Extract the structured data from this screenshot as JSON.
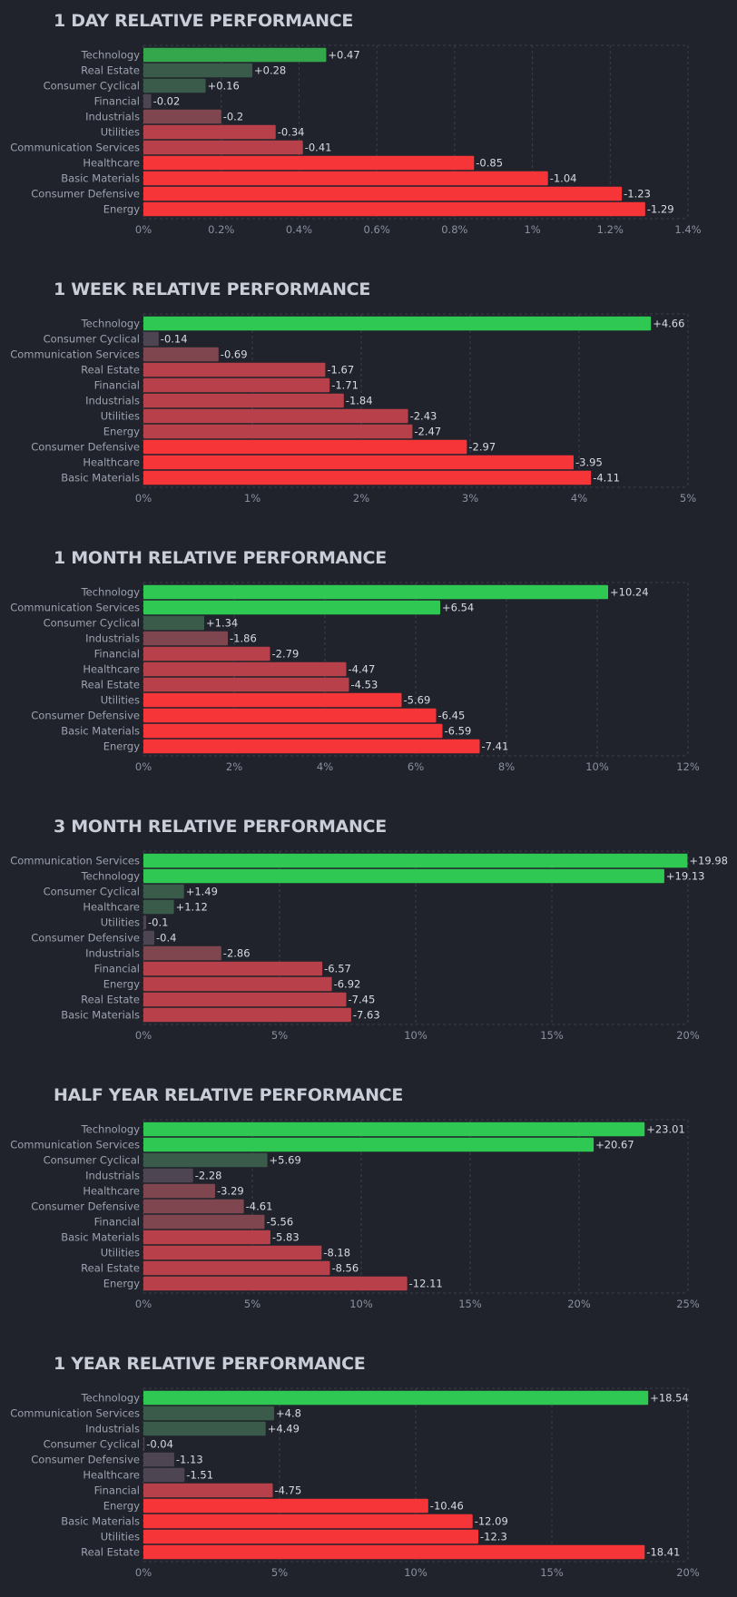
{
  "colors": {
    "background": "#20232b",
    "grid": "#3a3f4b",
    "strong_up": "#2fc853",
    "mid_up": "#34a64b",
    "weak_up": "#3a5a4a",
    "flat": "#4e4553",
    "weak_down": "#804650",
    "mid_down": "#b8404a",
    "strong_down": "#f63538"
  },
  "chart_data": [
    {
      "type": "bar",
      "orientation": "horizontal",
      "title": "1 DAY RELATIVE PERFORMANCE",
      "categories": [
        "Technology",
        "Real Estate",
        "Consumer Cyclical",
        "Financial",
        "Industrials",
        "Utilities",
        "Communication Services",
        "Healthcare",
        "Basic Materials",
        "Consumer Defensive",
        "Energy"
      ],
      "values": [
        0.47,
        0.28,
        0.16,
        -0.02,
        -0.2,
        -0.34,
        -0.41,
        -0.85,
        -1.04,
        -1.23,
        -1.29
      ],
      "value_labels": [
        "+0.47",
        "+0.28",
        "+0.16",
        "-0.02",
        "-0.2",
        "-0.34",
        "-0.41",
        "-0.85",
        "-1.04",
        "-1.23",
        "-1.29"
      ],
      "xlim": [
        0,
        1.4
      ],
      "ticks": [
        0,
        0.2,
        0.4,
        0.6,
        0.8,
        1,
        1.2,
        1.4
      ],
      "tick_labels": [
        "0%",
        "0.2%",
        "0.4%",
        "0.6%",
        "0.8%",
        "1%",
        "1.2%",
        "1.4%"
      ],
      "grid": true
    },
    {
      "type": "bar",
      "orientation": "horizontal",
      "title": "1 WEEK RELATIVE PERFORMANCE",
      "categories": [
        "Technology",
        "Consumer Cyclical",
        "Communication Services",
        "Real Estate",
        "Financial",
        "Industrials",
        "Utilities",
        "Energy",
        "Consumer Defensive",
        "Healthcare",
        "Basic Materials"
      ],
      "values": [
        4.66,
        -0.14,
        -0.69,
        -1.67,
        -1.71,
        -1.84,
        -2.43,
        -2.47,
        -2.97,
        -3.95,
        -4.11
      ],
      "value_labels": [
        "+4.66",
        "-0.14",
        "-0.69",
        "-1.67",
        "-1.71",
        "-1.84",
        "-2.43",
        "-2.47",
        "-2.97",
        "-3.95",
        "-4.11"
      ],
      "xlim": [
        0,
        5
      ],
      "ticks": [
        0,
        1,
        2,
        3,
        4,
        5
      ],
      "tick_labels": [
        "0%",
        "1%",
        "2%",
        "3%",
        "4%",
        "5%"
      ],
      "grid": true
    },
    {
      "type": "bar",
      "orientation": "horizontal",
      "title": "1 MONTH RELATIVE PERFORMANCE",
      "categories": [
        "Technology",
        "Communication Services",
        "Consumer Cyclical",
        "Industrials",
        "Financial",
        "Healthcare",
        "Real Estate",
        "Utilities",
        "Consumer Defensive",
        "Basic Materials",
        "Energy"
      ],
      "values": [
        10.24,
        6.54,
        1.34,
        -1.86,
        -2.79,
        -4.47,
        -4.53,
        -5.69,
        -6.45,
        -6.59,
        -7.41
      ],
      "value_labels": [
        "+10.24",
        "+6.54",
        "+1.34",
        "-1.86",
        "-2.79",
        "-4.47",
        "-4.53",
        "-5.69",
        "-6.45",
        "-6.59",
        "-7.41"
      ],
      "xlim": [
        0,
        12
      ],
      "ticks": [
        0,
        2,
        4,
        6,
        8,
        10,
        12
      ],
      "tick_labels": [
        "0%",
        "2%",
        "4%",
        "6%",
        "8%",
        "10%",
        "12%"
      ],
      "grid": true
    },
    {
      "type": "bar",
      "orientation": "horizontal",
      "title": "3 MONTH RELATIVE PERFORMANCE",
      "categories": [
        "Communication Services",
        "Technology",
        "Consumer Cyclical",
        "Healthcare",
        "Utilities",
        "Consumer Defensive",
        "Industrials",
        "Financial",
        "Energy",
        "Real Estate",
        "Basic Materials"
      ],
      "values": [
        19.98,
        19.13,
        1.49,
        1.12,
        -0.1,
        -0.4,
        -2.86,
        -6.57,
        -6.92,
        -7.45,
        -7.63
      ],
      "value_labels": [
        "+19.98",
        "+19.13",
        "+1.49",
        "+1.12",
        "-0.1",
        "-0.4",
        "-2.86",
        "-6.57",
        "-6.92",
        "-7.45",
        "-7.63"
      ],
      "xlim": [
        0,
        20
      ],
      "ticks": [
        0,
        5,
        10,
        15,
        20
      ],
      "tick_labels": [
        "0%",
        "5%",
        "10%",
        "15%",
        "20%"
      ],
      "grid": true
    },
    {
      "type": "bar",
      "orientation": "horizontal",
      "title": "HALF YEAR RELATIVE PERFORMANCE",
      "categories": [
        "Technology",
        "Communication Services",
        "Consumer Cyclical",
        "Industrials",
        "Healthcare",
        "Consumer Defensive",
        "Financial",
        "Basic Materials",
        "Utilities",
        "Real Estate",
        "Energy"
      ],
      "values": [
        23.01,
        20.67,
        5.69,
        -2.28,
        -3.29,
        -4.61,
        -5.56,
        -5.83,
        -8.18,
        -8.56,
        -12.11
      ],
      "value_labels": [
        "+23.01",
        "+20.67",
        "+5.69",
        "-2.28",
        "-3.29",
        "-4.61",
        "-5.56",
        "-5.83",
        "-8.18",
        "-8.56",
        "-12.11"
      ],
      "xlim": [
        0,
        25
      ],
      "ticks": [
        0,
        5,
        10,
        15,
        20,
        25
      ],
      "tick_labels": [
        "0%",
        "5%",
        "10%",
        "15%",
        "20%",
        "25%"
      ],
      "grid": true
    },
    {
      "type": "bar",
      "orientation": "horizontal",
      "title": "1 YEAR RELATIVE PERFORMANCE",
      "categories": [
        "Technology",
        "Communication Services",
        "Industrials",
        "Consumer Cyclical",
        "Consumer Defensive",
        "Healthcare",
        "Financial",
        "Energy",
        "Basic Materials",
        "Utilities",
        "Real Estate"
      ],
      "values": [
        18.54,
        4.8,
        4.49,
        -0.04,
        -1.13,
        -1.51,
        -4.75,
        -10.46,
        -12.09,
        -12.3,
        -18.41
      ],
      "value_labels": [
        "+18.54",
        "+4.8",
        "+4.49",
        "-0.04",
        "-1.13",
        "-1.51",
        "-4.75",
        "-10.46",
        "-12.09",
        "-12.3",
        "-18.41"
      ],
      "xlim": [
        0,
        20
      ],
      "ticks": [
        0,
        5,
        10,
        15,
        20
      ],
      "tick_labels": [
        "0%",
        "5%",
        "10%",
        "15%",
        "20%"
      ],
      "grid": true
    }
  ]
}
